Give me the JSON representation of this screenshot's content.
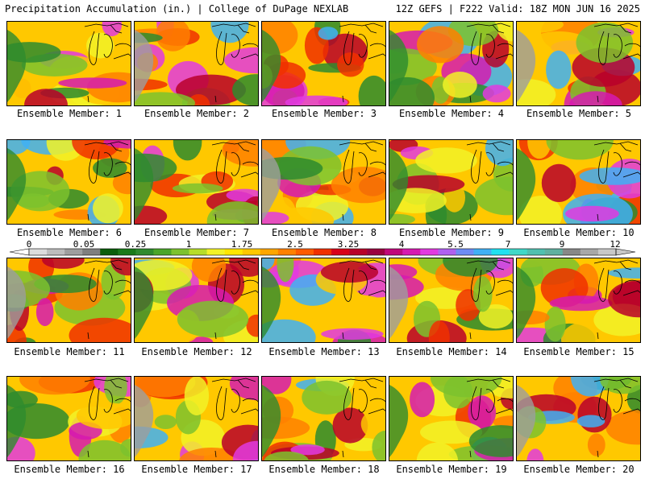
{
  "header": {
    "left": "Precipitation Accumulation (in.) | College of DuPage NEXLAB",
    "right": "12Z GEFS | F222 Valid: 18Z MON JUN 16 2025"
  },
  "colorbar": {
    "labels": [
      "0",
      "0.05",
      "0.25",
      "1",
      "1.75",
      "2.5",
      "3.25",
      "4",
      "5.5",
      "7",
      "9",
      "12"
    ],
    "colors": [
      "#dcdcdc",
      "#bdbdbd",
      "#9e9e9e",
      "#7f7f7f",
      "#0b5e0b",
      "#1a7a1a",
      "#2e8b2e",
      "#4aa52a",
      "#7cc22e",
      "#b7dd2a",
      "#f2f227",
      "#ffe600",
      "#ffc800",
      "#ffa600",
      "#ff8000",
      "#ff5a00",
      "#f03000",
      "#d8001a",
      "#b8002a",
      "#9a0040",
      "#c0087a",
      "#d61ab0",
      "#e23ae0",
      "#b060f0",
      "#6e8cf5",
      "#40b0f5",
      "#20e0f0",
      "#40d8c8",
      "#50c0b0",
      "#60b0a0",
      "#888888",
      "#a8a8a8",
      "#c8c8c8"
    ]
  },
  "panels": [
    {
      "label": "Ensemble Member: 1"
    },
    {
      "label": "Ensemble Member: 2"
    },
    {
      "label": "Ensemble Member: 3"
    },
    {
      "label": "Ensemble Member: 4"
    },
    {
      "label": "Ensemble Member: 5"
    },
    {
      "label": "Ensemble Member: 6"
    },
    {
      "label": "Ensemble Member: 7"
    },
    {
      "label": "Ensemble Member: 8"
    },
    {
      "label": "Ensemble Member: 9"
    },
    {
      "label": "Ensemble Member: 10"
    },
    {
      "label": "Ensemble Member: 11"
    },
    {
      "label": "Ensemble Member: 12"
    },
    {
      "label": "Ensemble Member: 13"
    },
    {
      "label": "Ensemble Member: 14"
    },
    {
      "label": "Ensemble Member: 15"
    },
    {
      "label": "Ensemble Member: 16"
    },
    {
      "label": "Ensemble Member: 17"
    },
    {
      "label": "Ensemble Member: 18"
    },
    {
      "label": "Ensemble Member: 19"
    },
    {
      "label": "Ensemble Member: 20"
    }
  ]
}
